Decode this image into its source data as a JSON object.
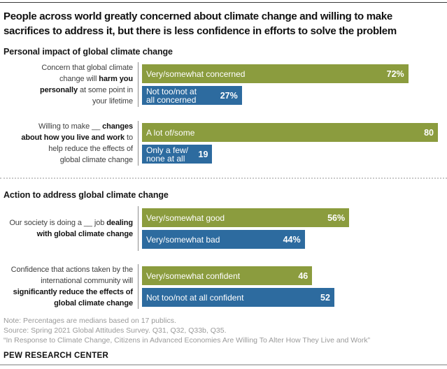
{
  "page": {
    "title_display": "People across world greatly concerned about climate change and willing to make\nsacrifices to address it, but there is less confidence in efforts to solve the problem",
    "footer": {
      "note": "Note: Percentages are medians based on 17 publics.",
      "source": "Source: Spring 2021 Global Attitudes Survey. Q31, Q32, Q33b, Q35.",
      "quote": "“In Response to Climate Change, Citizens in Advanced Economies Are Willing To Alter How They Live and Work”",
      "brand": "PEW RESEARCH CENTER"
    }
  },
  "chart_data": {
    "type": "bar",
    "orientation": "horizontal",
    "title": "People across world greatly concerned about climate change and willing to make sacrifices to address it, but there is less confidence in efforts to solve the problem",
    "axis_max": 80,
    "grid": false,
    "legend": "none (labels inside bars)",
    "colors": {
      "positive_green": "#8b9c3e",
      "negative_blue": "#2d6b9f"
    },
    "sections": [
      {
        "header": "Personal impact of global climate change",
        "groups": [
          {
            "question": "Concern that global climate change will harm you personally at some point in your lifetime",
            "label_pre": "Concern that global climate\nchange will ",
            "label_bold": "harm you\npersonally",
            "label_post": " at some point in\nyour lifetime",
            "bars": [
              {
                "category": "Very/somewhat concerned",
                "value": 72,
                "value_label": "72%",
                "color": "#8b9c3e"
              },
              {
                "category": "Not too/not at\nall concerned",
                "value": 27,
                "value_label": "27%",
                "color": "#2d6b9f"
              }
            ]
          },
          {
            "question": "Willing to make __ changes about how you live and work to help reduce the effects of global climate change",
            "label_pre": "Willing to make __ ",
            "label_bold": "changes\nabout how you live and work",
            "label_post": " to\nhelp reduce the effects of\nglobal climate change",
            "bars": [
              {
                "category": "A lot of/some",
                "value": 80,
                "value_label": "80",
                "color": "#8b9c3e"
              },
              {
                "category": "Only a few/\nnone at all",
                "value": 19,
                "value_label": "19",
                "color": "#2d6b9f"
              }
            ]
          }
        ]
      },
      {
        "header": "Action to address global climate change",
        "groups": [
          {
            "question": "Our society is doing a __ job dealing with global climate change",
            "label_pre": "Our society is doing a __ job ",
            "label_bold": "dealing\nwith global climate change",
            "label_post": "",
            "bars": [
              {
                "category": "Very/somewhat good",
                "value": 56,
                "value_label": "56%",
                "color": "#8b9c3e"
              },
              {
                "category": "Very/somewhat bad",
                "value": 44,
                "value_label": "44%",
                "color": "#2d6b9f"
              }
            ]
          },
          {
            "question": "Confidence that actions taken by the international community will significantly reduce the effects of global climate change",
            "label_pre": "Confidence that actions taken by the\ninternational community will\n",
            "label_bold": "significantly reduce the effects of\nglobal climate change",
            "label_post": "",
            "bars": [
              {
                "category": "Very/somewhat confident",
                "value": 46,
                "value_label": "46",
                "color": "#8b9c3e"
              },
              {
                "category": "Not too/not at all confident",
                "value": 52,
                "value_label": "52",
                "color": "#2d6b9f"
              }
            ]
          }
        ]
      }
    ]
  }
}
